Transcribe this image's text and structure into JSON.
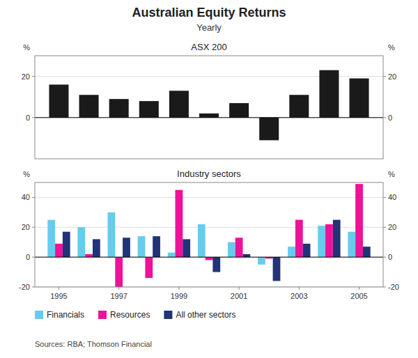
{
  "chart_data": [
    {
      "type": "bar",
      "title": "Australian Equity Returns",
      "subtitle": "Yearly",
      "annotation": "ASX 200",
      "x": [
        1995,
        1996,
        1997,
        1998,
        1999,
        2000,
        2001,
        2002,
        2003,
        2004,
        2005
      ],
      "values": [
        16,
        11,
        9,
        8,
        13,
        2,
        7,
        -11,
        11,
        23,
        19
      ],
      "color": "#1a1a1a",
      "xlim": [
        1994.2,
        2005.8
      ],
      "ylim": [
        -20,
        30
      ],
      "yticks": [
        0,
        20
      ],
      "y2lim": [
        -20,
        30
      ],
      "y2ticks": [
        0,
        20
      ],
      "ylabel": "%",
      "y2label": "%",
      "grid": true,
      "tick_labels": "y"
    },
    {
      "type": "bar",
      "annotation": "Industry sectors",
      "x": [
        1995,
        1996,
        1997,
        1998,
        1999,
        2000,
        2001,
        2002,
        2003,
        2004,
        2005
      ],
      "series": [
        {
          "name": "Financials",
          "color": "#66ccee",
          "values": [
            25,
            20,
            30,
            14,
            3,
            22,
            10,
            -5,
            7,
            21,
            17
          ]
        },
        {
          "name": "Resources",
          "color": "#ee1199",
          "values": [
            9,
            2,
            -20,
            -14,
            45,
            -2,
            13,
            -1,
            25,
            22,
            49
          ]
        },
        {
          "name": "All other sectors",
          "color": "#223377",
          "values": [
            17,
            12,
            13,
            14,
            12,
            -10,
            2,
            -16,
            9,
            25,
            7
          ]
        }
      ],
      "xlim": [
        1994.2,
        2005.8
      ],
      "xticks": [
        1995,
        1997,
        1999,
        2001,
        2003,
        2005
      ],
      "ylim": [
        -20,
        50
      ],
      "yticks": [
        -20,
        0,
        20,
        40
      ],
      "y2lim": [
        -20,
        50
      ],
      "y2ticks": [
        -20,
        0,
        20,
        40
      ],
      "ylabel": "%",
      "y2label": "%",
      "grid": true,
      "legend": "bottom",
      "source": "Sources: RBA; Thomson Financial"
    }
  ]
}
